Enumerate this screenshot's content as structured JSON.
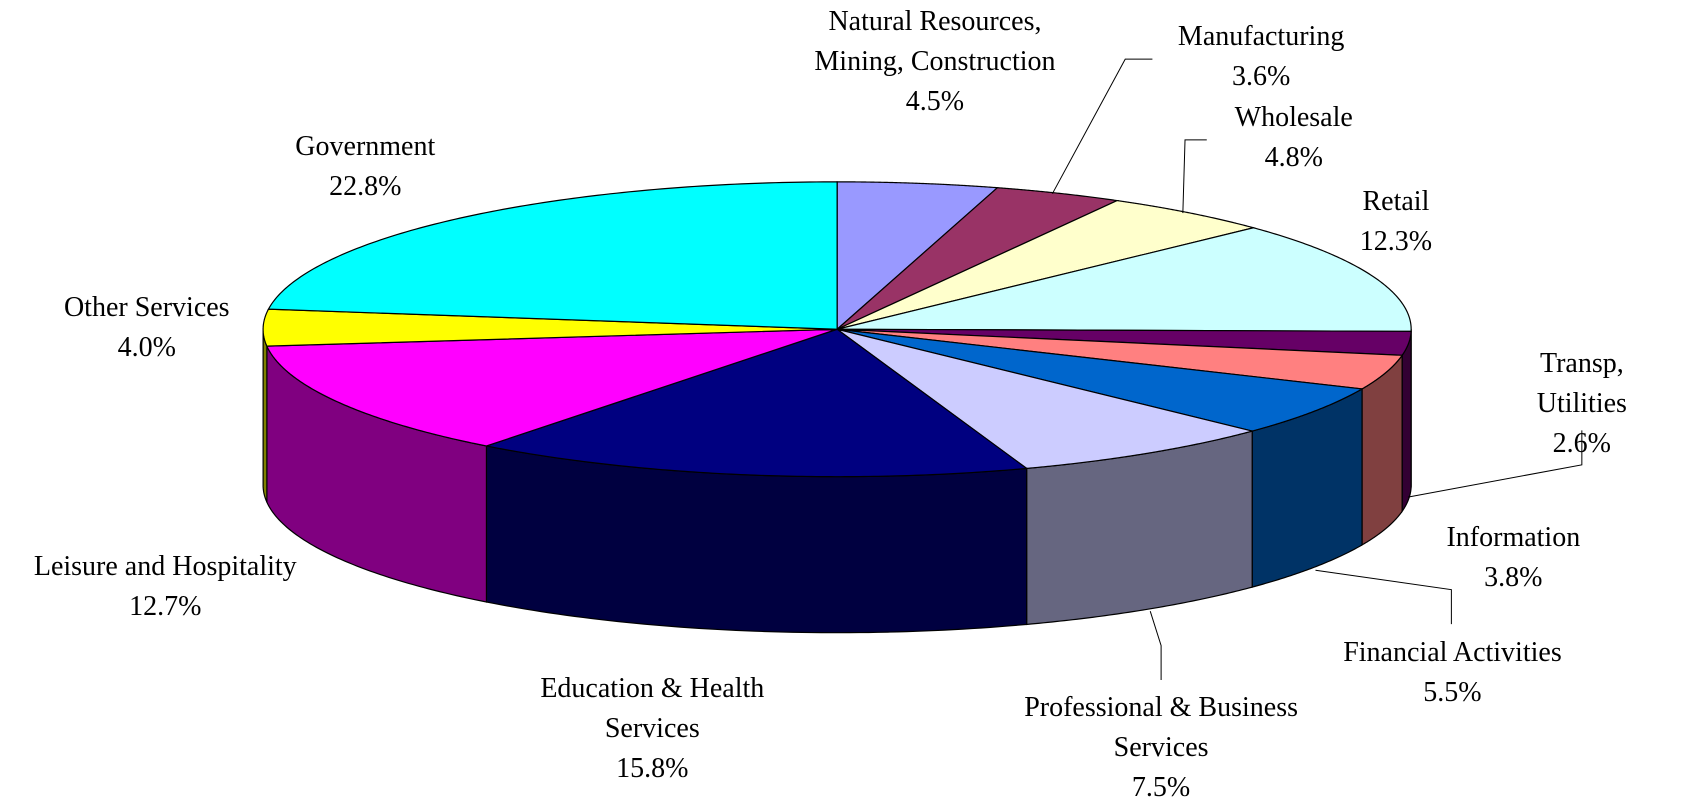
{
  "chart_data": {
    "type": "pie3d",
    "categories": [
      "Natural Resources,\nMining, Construction",
      "Manufacturing",
      "Wholesale",
      "Retail",
      "Transp, Utilities",
      "Information",
      "Financial Activities",
      "Professional & Business\nServices",
      "Education & Health\nServices",
      "Leisure and Hospitality",
      "Other Services",
      "Government"
    ],
    "values": [
      4.5,
      3.6,
      4.8,
      12.3,
      2.6,
      3.8,
      5.5,
      7.5,
      15.8,
      12.7,
      4.0,
      22.8
    ],
    "value_labels": [
      "4.5%",
      "3.6%",
      "4.8%",
      "12.3%",
      "2.6%",
      "3.8%",
      "5.5%",
      "7.5%",
      "15.8%",
      "12.7%",
      "4.0%",
      "22.8%"
    ],
    "colors": [
      "#9999ff",
      "#993366",
      "#ffffcc",
      "#ccffff",
      "#660066",
      "#ff8080",
      "#0066cc",
      "#ccccff",
      "#000080",
      "#ff00ff",
      "#ffff00",
      "#00ffff"
    ]
  }
}
